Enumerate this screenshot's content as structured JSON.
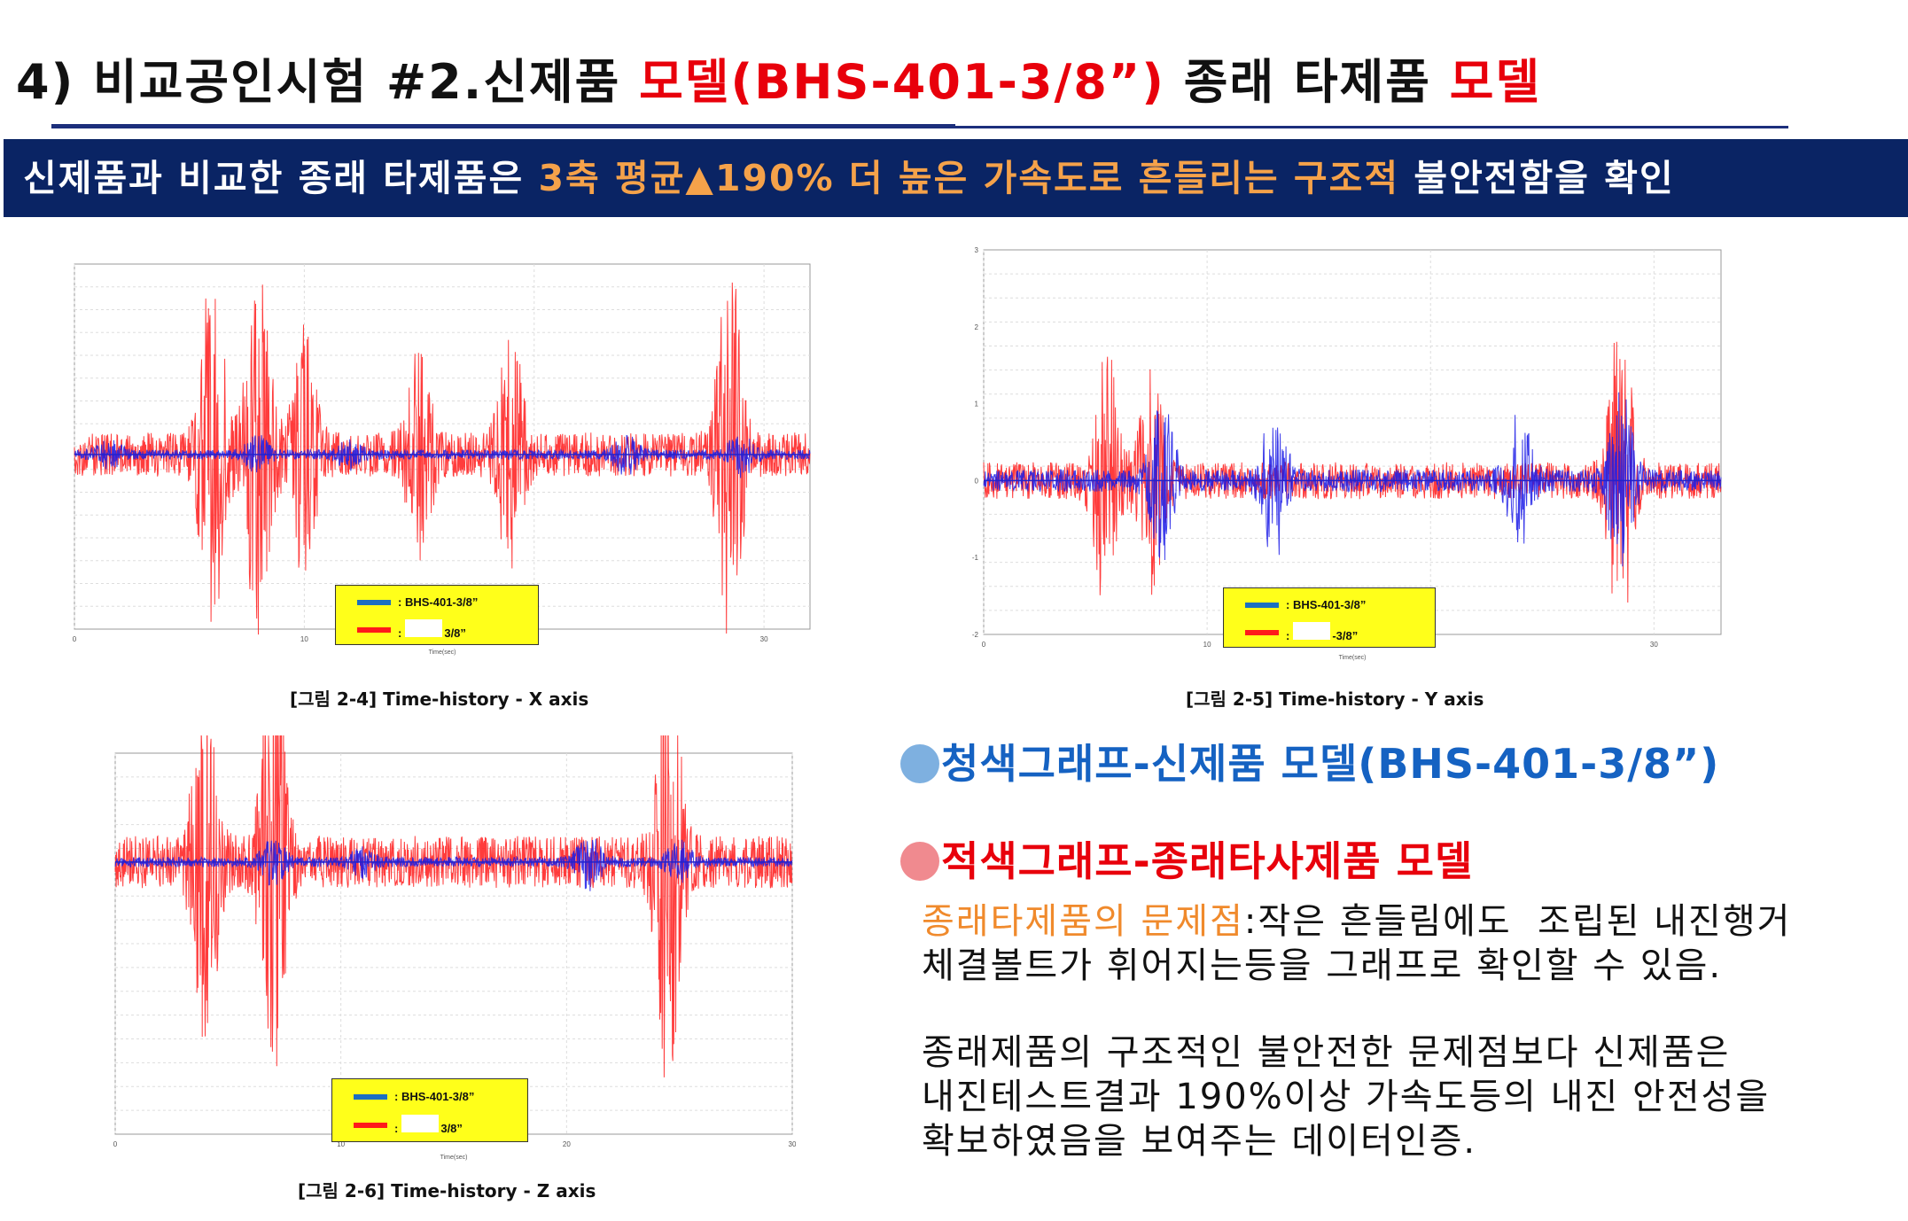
{
  "header": {
    "title_part1": "4) 비교공인시험 #2.신제품 ",
    "title_red1": "모델(BHS-401-3/8”)",
    "title_part2": " 종래 타제품 ",
    "title_red2": "모델"
  },
  "banner": {
    "part1": "신제품과 비교한 종래 타제품은 ",
    "highlight": "3축 평균▲190% 더 높은 가속도로 흔들리는 구조적",
    "part2": " 불안전함을 확인"
  },
  "colors": {
    "blue_series": "#1a1ae6",
    "red_series": "#ff1a1a",
    "legend_bg": "#ffff1a",
    "banner_bg": "#0a2464",
    "accent_red": "#e8000b",
    "accent_orange": "#f08a2c"
  },
  "chart_data": [
    {
      "type": "line",
      "caption": "[그림 2-4] Time-history - X axis",
      "xlabel": "Time(sec)",
      "xlim": [
        0,
        32
      ],
      "ylim": [
        -1.1,
        1.2
      ],
      "xticks": [
        "0",
        "10",
        "20",
        "30"
      ],
      "series": [
        {
          "name": "BHS-401-3/8”",
          "color": "blue",
          "peak_abs": 0.25
        },
        {
          "name": "3/8”",
          "color": "red",
          "peak_abs": 1.15
        }
      ],
      "legend": [
        "BHS-401-3/8”",
        "3/8”"
      ]
    },
    {
      "type": "line",
      "caption": "[그림 2-5] Time-history - Y axis",
      "xlabel": "Time(sec)",
      "xlim": [
        0,
        33
      ],
      "ylim": [
        -2,
        3
      ],
      "xticks": [
        "0",
        "10",
        "20",
        "30"
      ],
      "yticks": [
        "-2",
        "-1",
        "0",
        "1",
        "2",
        "3"
      ],
      "series": [
        {
          "name": "BHS-401-3/8”",
          "color": "blue",
          "peak_abs": 1.2
        },
        {
          "name": "-3/8”",
          "color": "red",
          "peak_abs": 2.0
        }
      ],
      "legend": [
        "BHS-401-3/8”",
        "-3/8”"
      ]
    },
    {
      "type": "line",
      "caption": "[그림 2-6] Time-history - Z axis",
      "xlabel": "Time(sec)",
      "xlim": [
        0,
        30
      ],
      "ylim": [
        -10,
        4
      ],
      "xticks": [
        "0",
        "10",
        "20",
        "30"
      ],
      "series": [
        {
          "name": "BHS-401-3/8”",
          "color": "blue",
          "peak_abs": 1.5
        },
        {
          "name": "3/8”",
          "color": "red",
          "peak_abs": 8.0
        }
      ],
      "legend": [
        "BHS-401-3/8”",
        "3/8”"
      ]
    }
  ],
  "bullets": {
    "blue": "청색그래프-신제품 모델(BHS-401-3/8”)",
    "red": "적색그래프-종래타사제품 모델"
  },
  "notes": {
    "problem_label": "종래타제품의 문제점",
    "problem_text_1": ":작은 흔들림에도  조립된 내진행거",
    "problem_text_2": "체결볼트가 휘어지는등을 그래프로 확인할 수 있음.",
    "summary_1": "종래제품의 구조적인 불안전한 문제점보다 신제품은",
    "summary_2": "내진테스트결과 190%이상 가속도등의 내진 안전성을",
    "summary_3": "확보하였음을 보여주는 데이터인증."
  }
}
